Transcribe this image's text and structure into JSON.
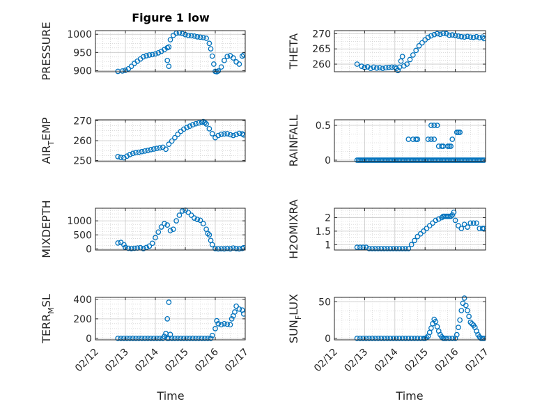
{
  "figure_title": "Figure 1 low",
  "colors": {
    "marker": "#0072BD",
    "axes": "#262626",
    "grid": "#c8c8c8"
  },
  "chart_data": [
    {
      "type": "scatter",
      "title": "Figure 1 low",
      "ylabel": "PRESSURE",
      "ylabel_parts": [
        "PRESSURE"
      ],
      "ylim": [
        897,
        1010
      ],
      "yticks": [
        900,
        950,
        1000
      ],
      "xlim": [
        12,
        17
      ],
      "xticks": [
        12,
        13,
        14,
        15,
        16,
        17
      ],
      "xticklabels": [
        "02/12",
        "02/13",
        "02/14",
        "02/15",
        "02/16",
        "02/17"
      ],
      "grid": true,
      "minor_grid": true,
      "x": [
        12.75,
        12.9,
        13.0,
        13.1,
        13.2,
        13.3,
        13.4,
        13.5,
        13.6,
        13.7,
        13.8,
        13.9,
        14.0,
        14.1,
        14.2,
        14.3,
        14.4,
        14.45,
        14.5,
        14.6,
        14.7,
        14.8,
        14.9,
        15.0,
        15.1,
        15.2,
        15.3,
        15.4,
        15.5,
        15.6,
        15.7,
        15.8,
        15.85,
        15.9,
        15.95,
        16.0,
        16.05,
        16.1,
        16.2,
        16.3,
        16.4,
        16.5,
        16.6,
        16.7,
        16.8,
        16.9,
        16.95,
        14.4,
        14.45
      ],
      "y": [
        898,
        899,
        901,
        905,
        912,
        920,
        926,
        932,
        938,
        941,
        943,
        944,
        946,
        949,
        953,
        958,
        963,
        965,
        985,
        997,
        1003,
        1004,
        1002,
        999,
        997,
        996,
        995,
        993,
        992,
        991,
        989,
        975,
        960,
        940,
        918,
        898,
        897,
        899,
        910,
        928,
        939,
        941,
        935,
        924,
        918,
        940,
        943,
        928,
        912
      ]
    },
    {
      "type": "scatter",
      "ylabel": "THETA",
      "ylabel_parts": [
        "THETA"
      ],
      "ylim": [
        257.5,
        271
      ],
      "yticks": [
        260,
        265,
        270
      ],
      "xlim": [
        12,
        17
      ],
      "xticks": [
        12,
        13,
        14,
        15,
        16,
        17
      ],
      "xticklabels": [
        "02/12",
        "02/13",
        "02/14",
        "02/15",
        "02/16",
        "02/17"
      ],
      "grid": true,
      "minor_grid": true,
      "x": [
        12.75,
        12.9,
        13.0,
        13.1,
        13.2,
        13.3,
        13.4,
        13.5,
        13.6,
        13.7,
        13.8,
        13.9,
        14.0,
        14.05,
        14.1,
        14.15,
        14.2,
        14.25,
        14.3,
        14.4,
        14.5,
        14.6,
        14.7,
        14.8,
        14.9,
        15.0,
        15.1,
        15.2,
        15.3,
        15.4,
        15.5,
        15.6,
        15.7,
        15.8,
        15.9,
        16.0,
        16.1,
        16.2,
        16.3,
        16.4,
        16.5,
        16.6,
        16.7,
        16.8,
        16.9,
        16.95
      ],
      "y": [
        260.0,
        259.3,
        258.9,
        259.1,
        258.6,
        259.0,
        258.7,
        258.8,
        258.6,
        258.8,
        258.9,
        259.0,
        259.0,
        258.6,
        257.9,
        259.0,
        261.0,
        262.5,
        259.4,
        260.0,
        261.5,
        263.0,
        264.5,
        266.0,
        267.0,
        268.0,
        268.8,
        269.3,
        269.7,
        270.0,
        269.8,
        270.1,
        270.0,
        269.5,
        269.6,
        269.4,
        269.2,
        269.0,
        268.9,
        269.1,
        268.9,
        268.8,
        269.0,
        268.7,
        268.9,
        268.4
      ]
    },
    {
      "type": "scatter",
      "ylabel": "AIR_TEMP",
      "ylabel_parts": [
        "AIR",
        "T",
        "EMP"
      ],
      "ylim": [
        249.5,
        270.5
      ],
      "yticks": [
        250,
        260,
        270
      ],
      "xlim": [
        12,
        17
      ],
      "xticks": [
        12,
        13,
        14,
        15,
        16,
        17
      ],
      "xticklabels": [
        "02/12",
        "02/13",
        "02/14",
        "02/15",
        "02/16",
        "02/17"
      ],
      "grid": true,
      "minor_grid": true,
      "x": [
        12.75,
        12.85,
        12.95,
        13.05,
        13.15,
        13.25,
        13.35,
        13.45,
        13.55,
        13.65,
        13.75,
        13.85,
        13.95,
        14.05,
        14.15,
        14.25,
        14.35,
        14.45,
        14.55,
        14.65,
        14.75,
        14.85,
        14.95,
        15.05,
        15.15,
        15.25,
        15.35,
        15.45,
        15.55,
        15.6,
        15.65,
        15.7,
        15.8,
        15.9,
        16.0,
        16.1,
        16.2,
        16.3,
        16.4,
        16.5,
        16.6,
        16.7,
        16.8,
        16.9,
        16.95
      ],
      "y": [
        252,
        251.6,
        251.4,
        252.2,
        253.0,
        253.6,
        254.0,
        254.2,
        254.5,
        254.8,
        255.1,
        255.5,
        255.8,
        256.1,
        256.4,
        256.7,
        255.7,
        258.2,
        259.8,
        261.5,
        263.2,
        264.7,
        265.8,
        266.6,
        267.3,
        268.0,
        268.5,
        268.9,
        269.3,
        269.6,
        269.1,
        268.4,
        266.0,
        263.5,
        261.5,
        262.6,
        263.2,
        263.4,
        263.5,
        263.0,
        262.6,
        263.1,
        263.7,
        263.4,
        262.9
      ]
    },
    {
      "type": "scatter",
      "ylabel": "RAINFALL",
      "ylabel_parts": [
        "RAINFALL"
      ],
      "ylim": [
        -0.02,
        0.58
      ],
      "yticks": [
        0,
        0.5
      ],
      "xlim": [
        12,
        17
      ],
      "xticks": [
        12,
        13,
        14,
        15,
        16,
        17
      ],
      "xticklabels": [
        "02/12",
        "02/13",
        "02/14",
        "02/15",
        "02/16",
        "02/17"
      ],
      "grid": true,
      "minor_grid": true,
      "x": [
        12.75,
        12.8,
        12.85,
        12.9,
        12.95,
        13.0,
        13.05,
        13.1,
        13.15,
        13.2,
        13.25,
        13.3,
        13.35,
        13.4,
        13.45,
        13.5,
        13.55,
        13.6,
        13.65,
        13.7,
        13.75,
        13.8,
        13.85,
        13.9,
        13.95,
        14.0,
        14.05,
        14.1,
        14.15,
        14.2,
        14.25,
        14.3,
        14.35,
        14.4,
        14.45,
        14.5,
        14.55,
        14.6,
        14.65,
        14.7,
        14.75,
        14.8,
        14.85,
        14.9,
        14.95,
        15.0,
        15.05,
        15.1,
        15.15,
        15.2,
        15.25,
        15.3,
        15.35,
        15.4,
        15.45,
        15.5,
        15.55,
        15.6,
        15.65,
        15.7,
        15.75,
        15.8,
        15.85,
        15.9,
        15.95,
        16.0,
        16.05,
        16.1,
        16.15,
        16.2,
        16.25,
        16.3,
        16.35,
        16.4,
        16.45,
        16.5,
        16.55,
        16.6,
        16.65,
        16.7,
        16.75,
        16.8,
        16.85,
        16.9,
        16.95,
        14.45,
        14.6,
        14.7,
        14.75,
        15.1,
        15.2,
        15.3,
        15.2,
        15.3,
        15.4,
        15.45,
        15.55,
        15.6,
        15.75,
        15.8,
        15.85,
        15.9,
        16.05,
        16.1,
        16.15
      ],
      "y": [
        0,
        0,
        0,
        0,
        0,
        0,
        0,
        0,
        0,
        0,
        0,
        0,
        0,
        0,
        0,
        0,
        0,
        0,
        0,
        0,
        0,
        0,
        0,
        0,
        0,
        0,
        0,
        0,
        0,
        0,
        0,
        0,
        0,
        0,
        0,
        0,
        0,
        0,
        0,
        0,
        0,
        0,
        0,
        0,
        0,
        0,
        0,
        0,
        0,
        0,
        0,
        0,
        0,
        0,
        0,
        0,
        0,
        0,
        0,
        0,
        0,
        0,
        0,
        0,
        0,
        0,
        0,
        0,
        0,
        0,
        0,
        0,
        0,
        0,
        0,
        0,
        0,
        0,
        0,
        0,
        0,
        0,
        0,
        0,
        0,
        0.3,
        0.3,
        0.3,
        0.3,
        0.3,
        0.3,
        0.3,
        0.5,
        0.5,
        0.5,
        0.2,
        0.2,
        0.2,
        0.2,
        0.2,
        0.2,
        0.3,
        0.4,
        0.4,
        0.4
      ]
    },
    {
      "type": "scatter",
      "ylabel": "MIXDEPTH",
      "ylabel_parts": [
        "MIXDEPTH"
      ],
      "ylim": [
        -40,
        1450
      ],
      "yticks": [
        0,
        500,
        1000
      ],
      "xlim": [
        12,
        17
      ],
      "xticks": [
        12,
        13,
        14,
        15,
        16,
        17
      ],
      "xticklabels": [
        "02/12",
        "02/13",
        "02/14",
        "02/15",
        "02/16",
        "02/17"
      ],
      "grid": true,
      "minor_grid": true,
      "x": [
        12.75,
        12.85,
        12.95,
        13.0,
        13.1,
        13.2,
        13.3,
        13.4,
        13.5,
        13.6,
        13.7,
        13.8,
        13.9,
        14.0,
        14.1,
        14.2,
        14.3,
        14.4,
        14.5,
        14.6,
        14.7,
        14.8,
        14.9,
        15.0,
        15.1,
        15.2,
        15.3,
        15.4,
        15.5,
        15.6,
        15.7,
        15.75,
        15.8,
        15.85,
        15.9,
        16.0,
        16.1,
        16.2,
        16.3,
        16.4,
        16.5,
        16.6,
        16.7,
        16.8,
        16.9,
        16.95
      ],
      "y": [
        210,
        230,
        150,
        50,
        20,
        10,
        20,
        30,
        40,
        10,
        50,
        100,
        200,
        400,
        600,
        780,
        900,
        850,
        650,
        700,
        1000,
        1200,
        1350,
        1380,
        1300,
        1200,
        1100,
        1050,
        1020,
        900,
        700,
        550,
        500,
        300,
        150,
        10,
        0,
        5,
        0,
        15,
        0,
        30,
        10,
        0,
        15,
        40
      ]
    },
    {
      "type": "scatter",
      "ylabel": "H2OMIXRA",
      "ylabel_parts": [
        "H2OMIXRA"
      ],
      "ylim": [
        0.8,
        2.35
      ],
      "yticks": [
        1,
        1.5,
        2
      ],
      "xlim": [
        12,
        17
      ],
      "xticks": [
        12,
        13,
        14,
        15,
        16,
        17
      ],
      "xticklabels": [
        "02/12",
        "02/13",
        "02/14",
        "02/15",
        "02/16",
        "02/17"
      ],
      "grid": true,
      "minor_grid": true,
      "x": [
        12.75,
        12.85,
        12.95,
        13.05,
        13.15,
        13.25,
        13.35,
        13.45,
        13.55,
        13.65,
        13.75,
        13.85,
        13.95,
        14.05,
        14.15,
        14.25,
        14.35,
        14.45,
        14.55,
        14.65,
        14.75,
        14.85,
        14.95,
        15.05,
        15.15,
        15.25,
        15.35,
        15.45,
        15.55,
        15.6,
        15.65,
        15.7,
        15.75,
        15.8,
        15.85,
        15.9,
        15.95,
        16.0,
        16.1,
        16.2,
        16.3,
        16.4,
        16.5,
        16.6,
        16.7,
        16.8,
        16.9,
        16.95
      ],
      "y": [
        0.9,
        0.9,
        0.9,
        0.9,
        0.85,
        0.85,
        0.85,
        0.85,
        0.85,
        0.85,
        0.85,
        0.85,
        0.85,
        0.85,
        0.85,
        0.85,
        0.85,
        0.85,
        1.0,
        1.15,
        1.3,
        1.4,
        1.5,
        1.6,
        1.7,
        1.8,
        1.9,
        1.95,
        2.0,
        2.05,
        2.05,
        2.05,
        2.05,
        2.05,
        2.05,
        2.1,
        2.2,
        1.9,
        1.7,
        1.6,
        1.75,
        1.65,
        1.8,
        1.8,
        1.8,
        1.6,
        1.6,
        1.6
      ]
    },
    {
      "type": "scatter",
      "ylabel": "TERR_MSL",
      "ylabel_parts": [
        "TERR",
        "M",
        "SL"
      ],
      "ylim": [
        -15,
        420
      ],
      "yticks": [
        0,
        200,
        400
      ],
      "xlim": [
        12,
        17
      ],
      "xticks": [
        12,
        13,
        14,
        15,
        16,
        17
      ],
      "xticklabels": [
        "02/12",
        "02/13",
        "02/14",
        "02/15",
        "02/16",
        "02/17"
      ],
      "grid": true,
      "minor_grid": true,
      "x": [
        12.75,
        12.85,
        12.95,
        13.05,
        13.15,
        13.25,
        13.35,
        13.45,
        13.55,
        13.65,
        13.75,
        13.85,
        13.95,
        14.05,
        14.15,
        14.25,
        14.3,
        14.35,
        14.4,
        14.45,
        14.5,
        14.55,
        14.65,
        14.75,
        14.85,
        14.95,
        15.05,
        15.15,
        15.25,
        15.35,
        15.45,
        15.55,
        15.65,
        15.75,
        15.85,
        15.9,
        16.0,
        16.05,
        16.1,
        16.2,
        16.3,
        16.4,
        16.5,
        16.55,
        16.6,
        16.65,
        16.7,
        16.8,
        16.9,
        16.95,
        14.4,
        14.45
      ],
      "y": [
        0,
        0,
        0,
        0,
        0,
        0,
        0,
        0,
        0,
        0,
        0,
        0,
        0,
        0,
        0,
        0,
        20,
        50,
        200,
        370,
        40,
        0,
        0,
        0,
        0,
        0,
        0,
        0,
        0,
        0,
        0,
        0,
        0,
        0,
        0,
        30,
        100,
        180,
        150,
        140,
        150,
        145,
        140,
        200,
        230,
        270,
        330,
        300,
        290,
        250,
        0,
        0
      ]
    },
    {
      "type": "scatter",
      "ylabel": "SUN_FLUX",
      "ylabel_parts": [
        "SUN",
        "F",
        "LUX"
      ],
      "ylim": [
        -2,
        56
      ],
      "yticks": [
        0,
        50
      ],
      "xlim": [
        12,
        17
      ],
      "xticks": [
        12,
        13,
        14,
        15,
        16,
        17
      ],
      "xticklabels": [
        "02/12",
        "02/13",
        "02/14",
        "02/15",
        "02/16",
        "02/17"
      ],
      "grid": true,
      "minor_grid": true,
      "x": [
        12.75,
        12.85,
        12.95,
        13.05,
        13.15,
        13.25,
        13.35,
        13.45,
        13.55,
        13.65,
        13.75,
        13.85,
        13.95,
        14.05,
        14.15,
        14.25,
        14.35,
        14.45,
        14.55,
        14.65,
        14.75,
        14.85,
        14.95,
        15.0,
        15.05,
        15.1,
        15.15,
        15.2,
        15.25,
        15.3,
        15.35,
        15.4,
        15.45,
        15.5,
        15.55,
        15.6,
        15.65,
        15.7,
        15.8,
        15.9,
        16.0,
        16.05,
        16.1,
        16.15,
        16.2,
        16.25,
        16.3,
        16.35,
        16.4,
        16.45,
        16.5,
        16.55,
        16.6,
        16.65,
        16.7,
        16.75,
        16.8,
        16.85,
        16.9,
        16.95
      ],
      "y": [
        0,
        0,
        0,
        0,
        0,
        0,
        0,
        0,
        0,
        0,
        0,
        0,
        0,
        0,
        0,
        0,
        0,
        0,
        0,
        0,
        0,
        0,
        0,
        0,
        1,
        3,
        8,
        14,
        20,
        26,
        23,
        16,
        10,
        5,
        2,
        0,
        0,
        0,
        0,
        0,
        0,
        5,
        15,
        25,
        38,
        48,
        55,
        45,
        38,
        30,
        22,
        20,
        18,
        15,
        10,
        5,
        2,
        0,
        0,
        0
      ]
    }
  ],
  "xlabel_left": "Time",
  "xlabel_right": "Time"
}
